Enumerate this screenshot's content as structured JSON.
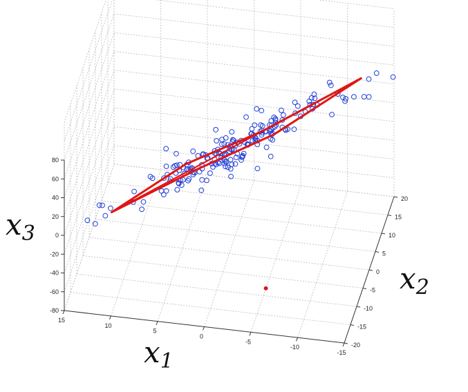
{
  "chart_data": {
    "type": "scatter",
    "title": "",
    "projection": "3d",
    "grid": true,
    "axes": {
      "x1": {
        "label": "x",
        "subscript": "1",
        "range": [
          -15,
          15
        ],
        "ticks": [
          15,
          10,
          5,
          0,
          -5,
          -10,
          -15
        ]
      },
      "x2": {
        "label": "x",
        "subscript": "2",
        "range": [
          -20,
          20
        ],
        "ticks": [
          20,
          15,
          10,
          5,
          0,
          -5,
          -10,
          -15,
          -20
        ]
      },
      "x3": {
        "label": "x",
        "subscript": "3",
        "range": [
          -80,
          80
        ],
        "ticks": [
          80,
          60,
          40,
          20,
          0,
          -20,
          -40,
          -60,
          -80
        ]
      }
    },
    "marker_color": "#1f3fd6",
    "hull_color": "#e01616",
    "red_point_color": "#e01616",
    "point_count": 200,
    "principal_direction": {
      "start": [
        12,
        -14,
        -2
      ],
      "end": [
        -13,
        17,
        58
      ]
    },
    "hull_vertices": [
      [
        11,
        -12,
        -2
      ],
      [
        4,
        -5,
        30
      ],
      [
        -3,
        4,
        38
      ],
      [
        -12,
        16,
        58
      ],
      [
        -4,
        6,
        28
      ],
      [
        3,
        -3,
        18
      ]
    ],
    "red_point": [
      -5,
      -8,
      -80
    ]
  }
}
